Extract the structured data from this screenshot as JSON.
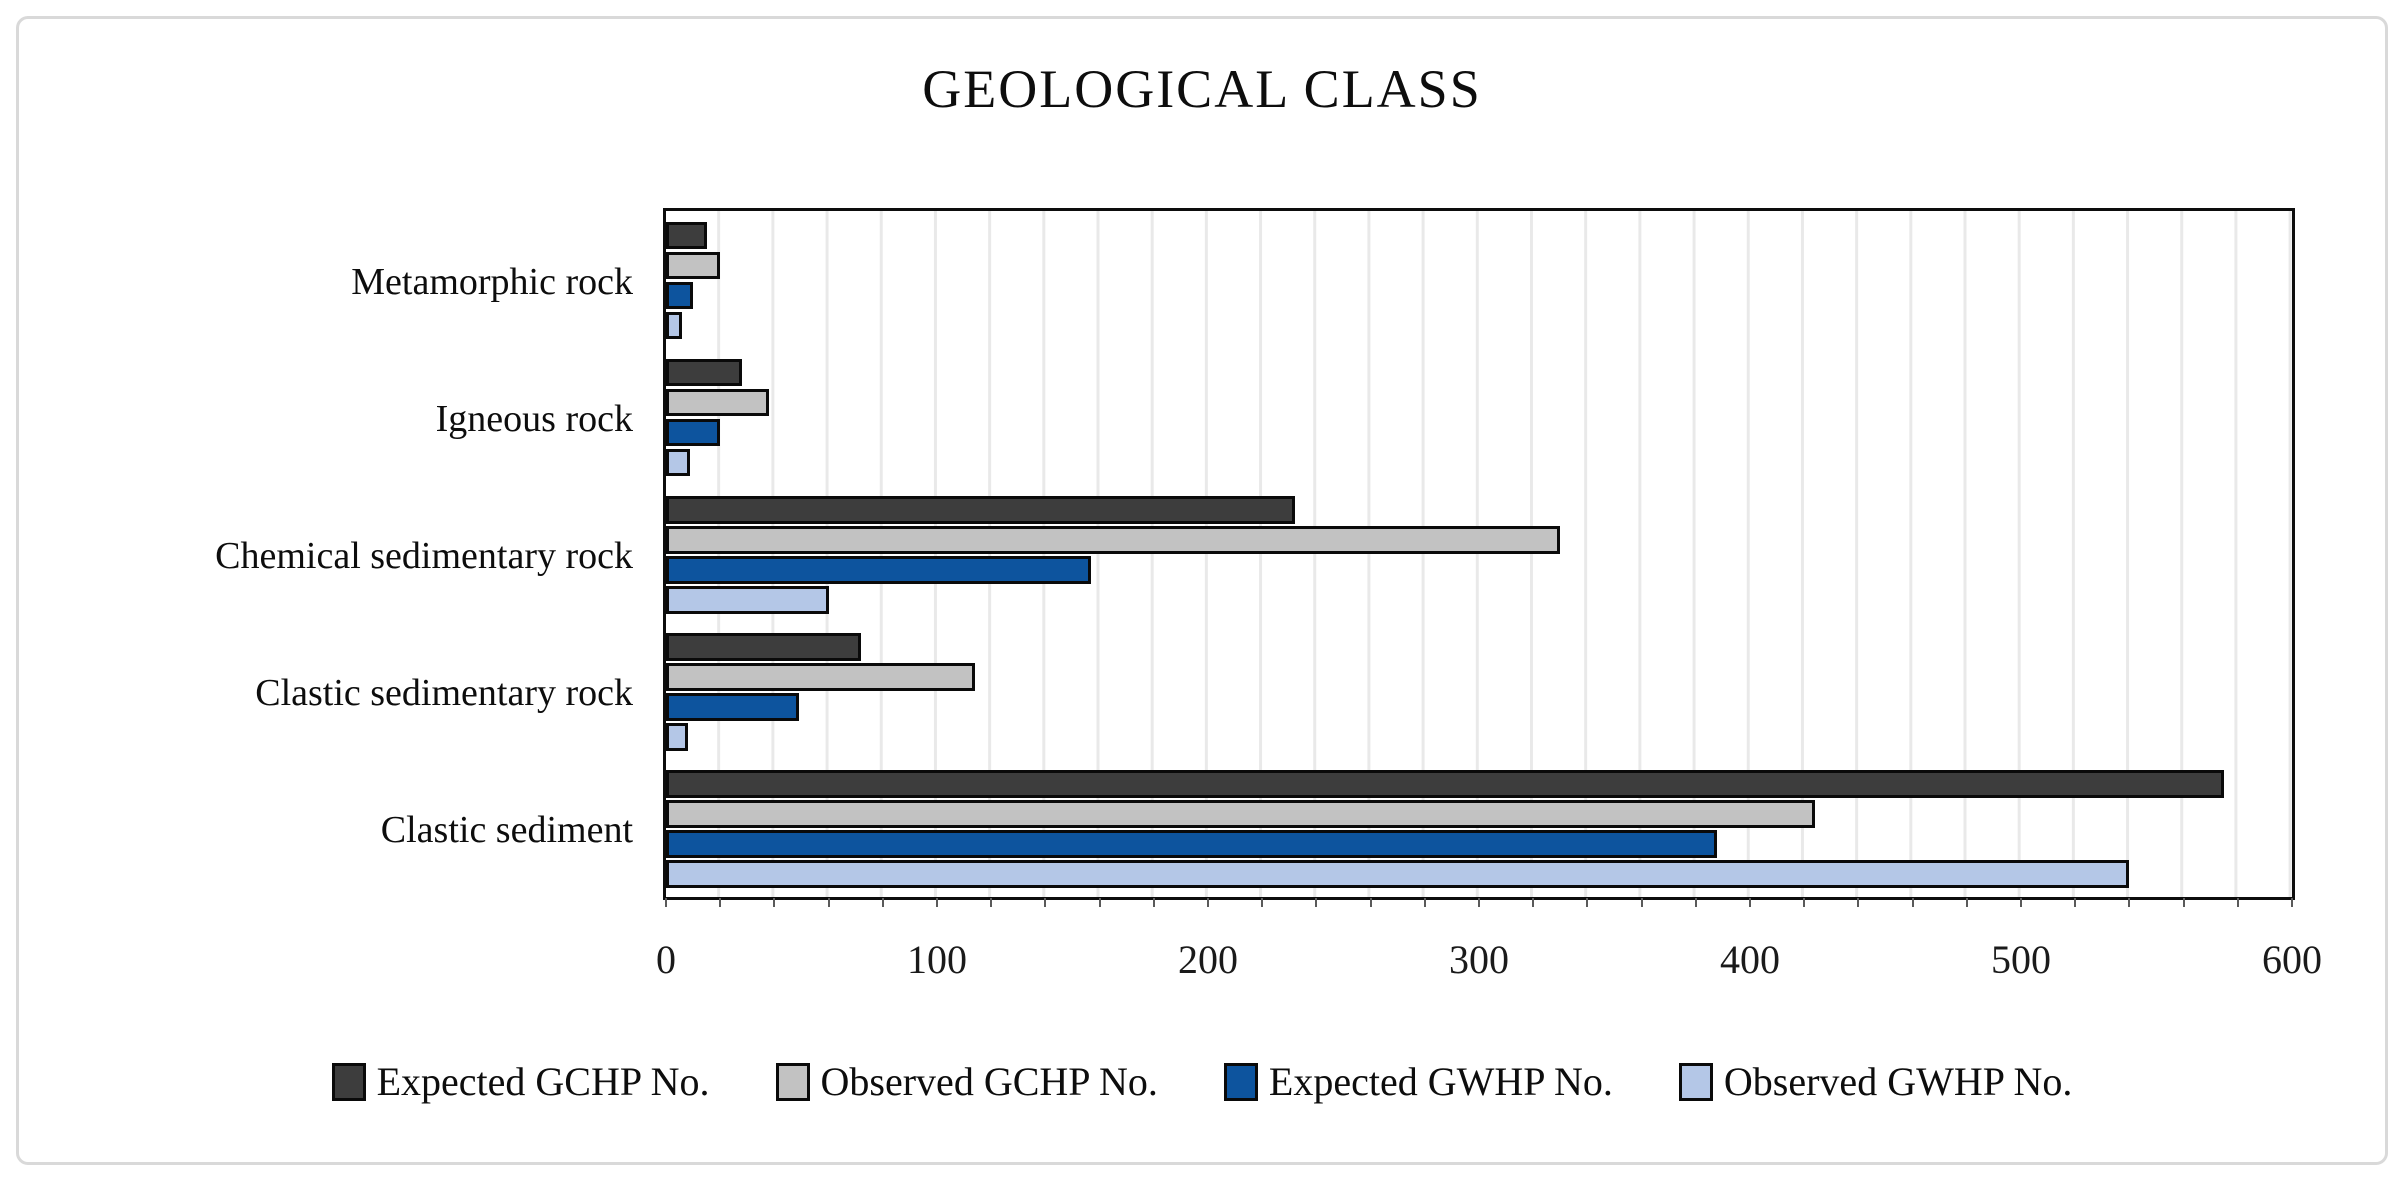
{
  "title": "GEOLOGICAL CLASS",
  "chart_data": {
    "type": "bar",
    "orientation": "horizontal",
    "title": "GEOLOGICAL CLASS",
    "categories": [
      "Metamorphic rock",
      "Igneous rock",
      "Chemical sedimentary rock",
      "Clastic sedimentary rock",
      "Clastic sediment"
    ],
    "series": [
      {
        "name": "Expected GCHP No.",
        "color": "#3d3d3d",
        "values": [
          15,
          28,
          232,
          72,
          575
        ]
      },
      {
        "name": "Observed GCHP No.",
        "color": "#c2c2c2",
        "values": [
          20,
          38,
          330,
          114,
          424
        ]
      },
      {
        "name": "Expected GWHP No.",
        "color": "#0d549e",
        "values": [
          10,
          20,
          157,
          49,
          388
        ]
      },
      {
        "name": "Observed GWHP No.",
        "color": "#b4c7e7",
        "values": [
          6,
          9,
          60,
          8,
          540
        ]
      }
    ],
    "xlim": [
      0,
      600
    ],
    "x_ticks": [
      0,
      100,
      200,
      300,
      400,
      500,
      600
    ],
    "minor_gridline_interval": 20,
    "grid": "vertical-minor-gridlines",
    "legend_position": "bottom",
    "bar_border_color": "#0a0a0a",
    "plot_border_color": "#0d0d0d",
    "gridline_color": "#e9e9e9",
    "canvas_border_color": "#d9d9d9"
  }
}
